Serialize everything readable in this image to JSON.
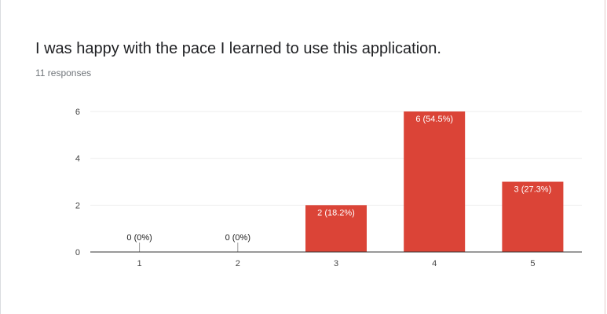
{
  "header": {
    "title": "I was happy with the pace I learned to use this application.",
    "responses": "11 responses"
  },
  "colors": {
    "bar": "#db4437",
    "gridline": "#eeeeee",
    "axis": "#333333",
    "label_inside": "#ffffff",
    "label_outside": "#222222"
  },
  "chart_data": {
    "type": "bar",
    "title": "I was happy with the pace I learned to use this application.",
    "xlabel": "",
    "ylabel": "",
    "categories": [
      "1",
      "2",
      "3",
      "4",
      "5"
    ],
    "values": [
      0,
      0,
      2,
      6,
      3
    ],
    "data_labels": [
      "0 (0%)",
      "0 (0%)",
      "2 (18.2%)",
      "6 (54.5%)",
      "3 (27.3%)"
    ],
    "ylim": [
      0,
      6
    ],
    "yticks": [
      0,
      2,
      4,
      6
    ],
    "grid": true,
    "legend": "none"
  }
}
